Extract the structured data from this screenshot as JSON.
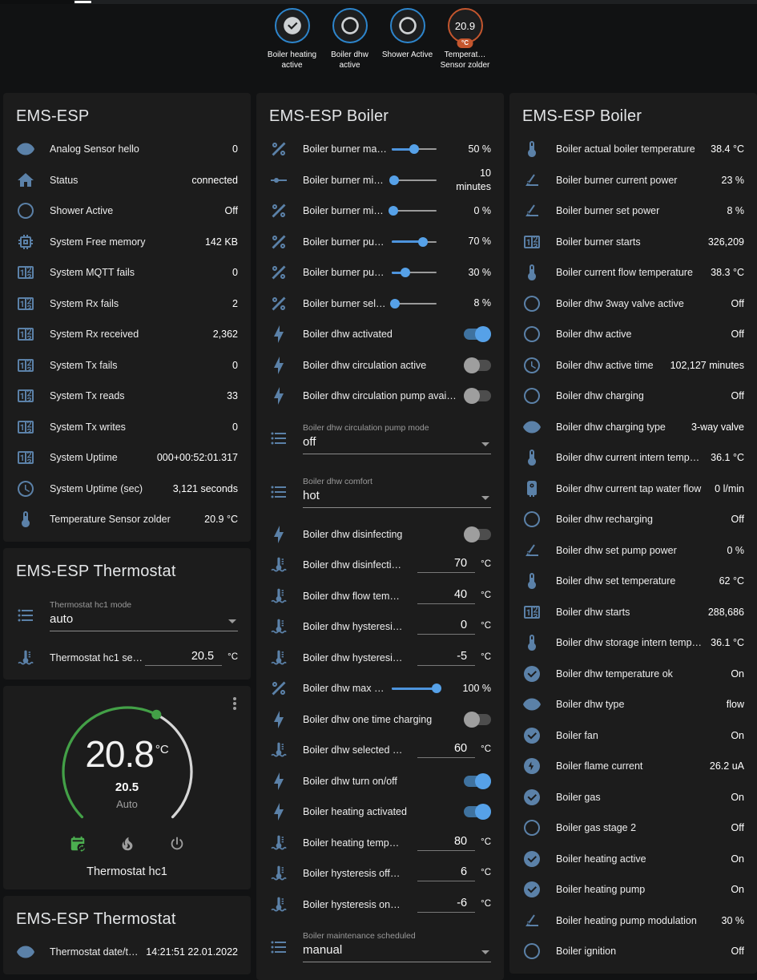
{
  "theme": {
    "page_bg": "#111213",
    "card_bg": "#1c1c1c",
    "icon_color": "#5b81a8",
    "accent_blue": "#56a1e8",
    "badge_ring_blue": "#2d85cc",
    "badge_ring_orange": "#c4562e"
  },
  "header": {
    "badges": [
      {
        "id": "boiler-heating-active",
        "icon": "check-circle-badge",
        "label": "Boiler heating active",
        "ring": "#2d85cc"
      },
      {
        "id": "boiler-dhw-active",
        "icon": "circle-outline-badge",
        "label": "Boiler dhw active",
        "ring": "#2d85cc"
      },
      {
        "id": "shower-active",
        "icon": "circle-outline-badge",
        "label": "Shower Active",
        "ring": "#2d85cc"
      },
      {
        "id": "temperature-sensor-zolder",
        "value": "20.9",
        "unit": "°C",
        "label": "Temperat… Sensor zolder",
        "ring": "#c4562e"
      }
    ]
  },
  "columns": [
    {
      "cards": [
        {
          "type": "entities",
          "title": "EMS-ESP",
          "rows": [
            {
              "kind": "sensor",
              "icon": "eye",
              "label": "Analog Sensor hello",
              "value": "0"
            },
            {
              "kind": "sensor",
              "icon": "home",
              "label": "Status",
              "value": "connected"
            },
            {
              "kind": "sensor",
              "icon": "circle-outline",
              "label": "Shower Active",
              "value": "Off"
            },
            {
              "kind": "sensor",
              "icon": "chip",
              "label": "System Free memory",
              "value": "142 KB"
            },
            {
              "kind": "sensor",
              "icon": "counter",
              "label": "System MQTT fails",
              "value": "0"
            },
            {
              "kind": "sensor",
              "icon": "counter",
              "label": "System Rx fails",
              "value": "2"
            },
            {
              "kind": "sensor",
              "icon": "counter",
              "label": "System Rx received",
              "value": "2,362"
            },
            {
              "kind": "sensor",
              "icon": "counter",
              "label": "System Tx fails",
              "value": "0"
            },
            {
              "kind": "sensor",
              "icon": "counter",
              "label": "System Tx reads",
              "value": "33"
            },
            {
              "kind": "sensor",
              "icon": "counter",
              "label": "System Tx writes",
              "value": "0"
            },
            {
              "kind": "sensor",
              "icon": "counter",
              "label": "System Uptime",
              "value": "000+00:52:01.317"
            },
            {
              "kind": "sensor",
              "icon": "clock",
              "label": "System Uptime (sec)",
              "value": "3,121 seconds"
            },
            {
              "kind": "sensor",
              "icon": "thermometer",
              "label": "Temperature Sensor zolder",
              "value": "20.9 °C"
            }
          ]
        },
        {
          "type": "entities",
          "title": "EMS-ESP Thermostat",
          "rows": [
            {
              "kind": "select",
              "icon": "list",
              "label": "Thermostat hc1 mode",
              "value": "auto"
            },
            {
              "kind": "number",
              "icon": "thermo-water",
              "label": "Thermostat hc1 se…",
              "value": "20.5",
              "unit": "°C"
            }
          ]
        },
        {
          "type": "thermostat",
          "current": "20.8",
          "current_unit": "°C",
          "target": "20.5",
          "mode_label": "Auto",
          "entity_name": "Thermostat hc1",
          "fraction": 0.6,
          "arc_active_color": "#43a047",
          "arc_rest_color": "#d6d6d6",
          "modes": [
            {
              "id": "auto-mode",
              "icon": "calendar-sync",
              "active": true,
              "active_color": "#4caf50"
            },
            {
              "id": "heat-mode",
              "icon": "fire",
              "active": false
            },
            {
              "id": "off-mode",
              "icon": "power",
              "active": false
            }
          ]
        },
        {
          "type": "entities",
          "title": "EMS-ESP Thermostat",
          "rows": [
            {
              "kind": "sensor",
              "icon": "eye",
              "label": "Thermostat date/time",
              "value": "14:21:51 22.01.2022"
            }
          ]
        }
      ]
    },
    {
      "cards": [
        {
          "type": "entities",
          "title": "EMS-ESP Boiler",
          "rows": [
            {
              "kind": "slider",
              "icon": "percent",
              "label": "Boiler burner max po…",
              "value": "50 %",
              "pct": 50
            },
            {
              "kind": "slider",
              "icon": "ray-vertex",
              "label": "Boiler burner min p…",
              "value": "10 minutes",
              "pct": 6
            },
            {
              "kind": "slider",
              "icon": "percent",
              "label": "Boiler burner min po…",
              "value": "0 %",
              "pct": 3
            },
            {
              "kind": "slider",
              "icon": "percent",
              "label": "Boiler burner pump …",
              "value": "70 %",
              "pct": 70
            },
            {
              "kind": "slider",
              "icon": "percent",
              "label": "Boiler burner pump …",
              "value": "30 %",
              "pct": 30
            },
            {
              "kind": "slider",
              "icon": "percent",
              "label": "Boiler burner selecte…",
              "value": "8 %",
              "pct": 8
            },
            {
              "kind": "toggle",
              "icon": "flash",
              "label": "Boiler dhw activated",
              "on": true
            },
            {
              "kind": "toggle",
              "icon": "flash",
              "label": "Boiler dhw circulation active",
              "on": false
            },
            {
              "kind": "toggle",
              "icon": "flash",
              "label": "Boiler dhw circulation pump available",
              "on": false
            },
            {
              "kind": "select",
              "icon": "list",
              "label": "Boiler dhw circulation pump mode",
              "value": "off"
            },
            {
              "kind": "select",
              "icon": "list",
              "label": "Boiler dhw comfort",
              "value": "hot"
            },
            {
              "kind": "toggle",
              "icon": "flash",
              "label": "Boiler dhw disinfecting",
              "on": false
            },
            {
              "kind": "number",
              "icon": "thermo-water",
              "label": "Boiler dhw disinfecti…",
              "value": "70",
              "unit": "°C"
            },
            {
              "kind": "number",
              "icon": "thermo-water",
              "label": "Boiler dhw flow tem…",
              "value": "40",
              "unit": "°C"
            },
            {
              "kind": "number",
              "icon": "thermo-water",
              "label": "Boiler dhw hysteresi…",
              "value": "0",
              "unit": "°C"
            },
            {
              "kind": "number",
              "icon": "thermo-water",
              "label": "Boiler dhw hysteresi…",
              "value": "-5",
              "unit": "°C"
            },
            {
              "kind": "slider",
              "icon": "percent",
              "label": "Boiler dhw max power",
              "value": "100 %",
              "pct": 100
            },
            {
              "kind": "toggle",
              "icon": "flash",
              "label": "Boiler dhw one time charging",
              "on": false
            },
            {
              "kind": "number",
              "icon": "thermo-water",
              "label": "Boiler dhw selected …",
              "value": "60",
              "unit": "°C"
            },
            {
              "kind": "toggle",
              "icon": "flash",
              "label": "Boiler dhw turn on/off",
              "on": true
            },
            {
              "kind": "toggle",
              "icon": "flash",
              "label": "Boiler heating activated",
              "on": true
            },
            {
              "kind": "number",
              "icon": "thermo-water",
              "label": "Boiler heating temp…",
              "value": "80",
              "unit": "°C"
            },
            {
              "kind": "number",
              "icon": "thermo-water",
              "label": "Boiler hysteresis off…",
              "value": "6",
              "unit": "°C"
            },
            {
              "kind": "number",
              "icon": "thermo-water",
              "label": "Boiler hysteresis on…",
              "value": "-6",
              "unit": "°C"
            },
            {
              "kind": "select",
              "icon": "list",
              "label": "Boiler maintenance scheduled",
              "value": "manual"
            }
          ]
        }
      ]
    },
    {
      "cards": [
        {
          "type": "entities",
          "title": "EMS-ESP Boiler",
          "rows": [
            {
              "kind": "sensor",
              "icon": "thermometer",
              "label": "Boiler actual boiler temperature",
              "value": "38.4 °C"
            },
            {
              "kind": "sensor",
              "icon": "angle",
              "label": "Boiler burner current power",
              "value": "23 %"
            },
            {
              "kind": "sensor",
              "icon": "angle",
              "label": "Boiler burner set power",
              "value": "8 %"
            },
            {
              "kind": "sensor",
              "icon": "counter",
              "label": "Boiler burner starts",
              "value": "326,209"
            },
            {
              "kind": "sensor",
              "icon": "thermometer",
              "label": "Boiler current flow temperature",
              "value": "38.3 °C"
            },
            {
              "kind": "sensor",
              "icon": "circle-outline",
              "label": "Boiler dhw 3way valve active",
              "value": "Off"
            },
            {
              "kind": "sensor",
              "icon": "circle-outline",
              "label": "Boiler dhw active",
              "value": "Off"
            },
            {
              "kind": "sensor",
              "icon": "clock",
              "label": "Boiler dhw active time",
              "value": "102,127 minutes"
            },
            {
              "kind": "sensor",
              "icon": "circle-outline",
              "label": "Boiler dhw charging",
              "value": "Off"
            },
            {
              "kind": "sensor",
              "icon": "eye",
              "label": "Boiler dhw charging type",
              "value": "3-way valve"
            },
            {
              "kind": "sensor",
              "icon": "thermometer",
              "label": "Boiler dhw current intern temperature",
              "value": "36.1 °C"
            },
            {
              "kind": "sensor",
              "icon": "water-boiler",
              "label": "Boiler dhw current tap water flow",
              "value": "0 l/min"
            },
            {
              "kind": "sensor",
              "icon": "circle-outline",
              "label": "Boiler dhw recharging",
              "value": "Off"
            },
            {
              "kind": "sensor",
              "icon": "angle",
              "label": "Boiler dhw set pump power",
              "value": "0 %"
            },
            {
              "kind": "sensor",
              "icon": "thermometer",
              "label": "Boiler dhw set temperature",
              "value": "62 °C"
            },
            {
              "kind": "sensor",
              "icon": "counter",
              "label": "Boiler dhw starts",
              "value": "288,686"
            },
            {
              "kind": "sensor",
              "icon": "thermometer",
              "label": "Boiler dhw storage intern temperature",
              "value": "36.1 °C"
            },
            {
              "kind": "sensor",
              "icon": "check-circle",
              "label": "Boiler dhw temperature ok",
              "value": "On"
            },
            {
              "kind": "sensor",
              "icon": "eye",
              "label": "Boiler dhw type",
              "value": "flow"
            },
            {
              "kind": "sensor",
              "icon": "check-circle",
              "label": "Boiler fan",
              "value": "On"
            },
            {
              "kind": "sensor",
              "icon": "flash-circle",
              "label": "Boiler flame current",
              "value": "26.2 uA"
            },
            {
              "kind": "sensor",
              "icon": "check-circle",
              "label": "Boiler gas",
              "value": "On"
            },
            {
              "kind": "sensor",
              "icon": "circle-outline",
              "label": "Boiler gas stage 2",
              "value": "Off"
            },
            {
              "kind": "sensor",
              "icon": "check-circle",
              "label": "Boiler heating active",
              "value": "On"
            },
            {
              "kind": "sensor",
              "icon": "check-circle",
              "label": "Boiler heating pump",
              "value": "On"
            },
            {
              "kind": "sensor",
              "icon": "angle",
              "label": "Boiler heating pump modulation",
              "value": "30 %"
            },
            {
              "kind": "sensor",
              "icon": "circle-outline",
              "label": "Boiler ignition",
              "value": "Off"
            }
          ]
        }
      ]
    }
  ]
}
